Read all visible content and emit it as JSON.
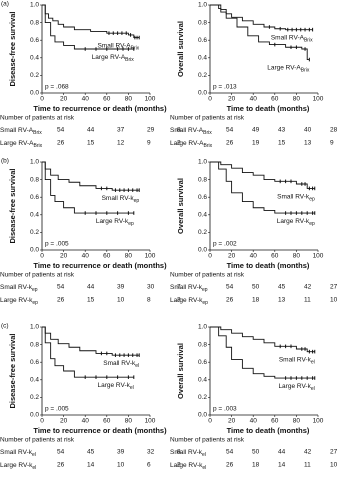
{
  "chart_data": [
    {
      "type": "step",
      "panel": "(a)",
      "ylabel": "Disease-free survival",
      "xlabel": "Time to recurrence or death (months)",
      "annotation": "p = .068",
      "xlim": [
        0,
        100
      ],
      "xticks": [
        0,
        20,
        40,
        60,
        80,
        100
      ],
      "ylim": [
        0,
        1
      ],
      "yticks": [
        {
          "value": 0,
          "label": "0.0"
        },
        0.2,
        0.4,
        0.6,
        0.8,
        {
          "value": 1,
          "label": "1.0"
        }
      ],
      "series": [
        {
          "name": "Small RV-A",
          "subscript": "Brix",
          "color": "#111111",
          "x": [
            0,
            3,
            6,
            10,
            15,
            20,
            30,
            45,
            60,
            80,
            85,
            90
          ],
          "values": [
            1,
            0.9,
            0.85,
            0.82,
            0.78,
            0.75,
            0.72,
            0.7,
            0.68,
            0.66,
            0.63,
            0.63
          ],
          "censored": [
            62,
            66,
            70,
            74,
            78,
            82,
            86,
            88,
            90
          ]
        },
        {
          "name": "Large RV-A",
          "subscript": "Brix",
          "color": "#111111",
          "x": [
            0,
            3,
            8,
            12,
            20,
            30,
            85
          ],
          "values": [
            1,
            0.8,
            0.65,
            0.58,
            0.54,
            0.5,
            0.5
          ],
          "censored": [
            40,
            50,
            60,
            70,
            75,
            80,
            85
          ]
        }
      ],
      "risk_table": {
        "title": "Number of patients at risk",
        "rows": [
          {
            "name": "Small RV-A",
            "subscript": "Brix",
            "counts": [
              54,
              44,
              37,
              29,
              8
            ]
          },
          {
            "name": "Large RV-A",
            "subscript": "Brix",
            "counts": [
              26,
              15,
              12,
              9,
              2
            ]
          }
        ]
      }
    },
    {
      "type": "step",
      "ylabel": "Overall survival",
      "xlabel": "Time to death (months)",
      "annotation": "p = .013",
      "xlim": [
        0,
        100
      ],
      "xticks": [
        0,
        20,
        40,
        60,
        80,
        100
      ],
      "ylim": [
        0,
        1
      ],
      "yticks": [
        {
          "value": 0,
          "label": "0.0"
        },
        0.2,
        0.4,
        0.6,
        0.8,
        {
          "value": 1,
          "label": "1.0"
        }
      ],
      "series": [
        {
          "name": "Small RV-A",
          "subscript": "Brix",
          "color": "#111111",
          "x": [
            0,
            10,
            15,
            20,
            30,
            40,
            50,
            60,
            70,
            95
          ],
          "values": [
            1,
            0.95,
            0.9,
            0.86,
            0.82,
            0.78,
            0.75,
            0.73,
            0.72,
            0.72
          ],
          "censored": [
            55,
            65,
            72,
            76,
            80,
            84,
            88,
            92,
            95
          ]
        },
        {
          "name": "Large RV-A",
          "subscript": "Brix",
          "color": "#111111",
          "x": [
            0,
            8,
            10,
            15,
            25,
            35,
            45,
            55,
            70,
            85,
            90,
            92
          ],
          "values": [
            1,
            0.96,
            0.92,
            0.85,
            0.75,
            0.65,
            0.58,
            0.55,
            0.52,
            0.5,
            0.38,
            0.38
          ],
          "censored": [
            60,
            75,
            80,
            88,
            92
          ]
        }
      ],
      "risk_table": {
        "title": "Number of patients at risk",
        "rows": [
          {
            "name": "Small RV-A",
            "subscript": "Brix",
            "counts": [
              54,
              49,
              43,
              40,
              28
            ]
          },
          {
            "name": "Large RV-A",
            "subscript": "Brix",
            "counts": [
              26,
              19,
              15,
              13,
              9
            ]
          }
        ]
      }
    },
    {
      "type": "step",
      "panel": "(b)",
      "ylabel": "Disease-free survival",
      "xlabel": "Time to recurrence or death (months)",
      "annotation": "p = .005",
      "xlim": [
        0,
        100
      ],
      "xticks": [
        0,
        20,
        40,
        60,
        80,
        100
      ],
      "ylim": [
        0,
        1
      ],
      "yticks": [
        {
          "value": 0,
          "label": "0.0"
        },
        0.2,
        0.4,
        0.6,
        0.8,
        {
          "value": 1,
          "label": "1.0"
        }
      ],
      "series": [
        {
          "name": "Small RV-k",
          "subscript": "ep",
          "color": "#111111",
          "x": [
            0,
            3,
            8,
            15,
            25,
            35,
            50,
            65,
            90
          ],
          "values": [
            1,
            0.92,
            0.85,
            0.8,
            0.77,
            0.73,
            0.7,
            0.68,
            0.68
          ],
          "censored": [
            55,
            60,
            68,
            72,
            76,
            80,
            84,
            88,
            90
          ]
        },
        {
          "name": "Large RV-k",
          "subscript": "ep",
          "color": "#111111",
          "x": [
            0,
            3,
            8,
            12,
            20,
            30,
            85
          ],
          "values": [
            1,
            0.8,
            0.62,
            0.55,
            0.48,
            0.42,
            0.42
          ],
          "censored": [
            40,
            50,
            60,
            70,
            80,
            85
          ]
        }
      ],
      "risk_table": {
        "title": "Number of patients at risk",
        "rows": [
          {
            "name": "Small RV-k",
            "subscript": "ep",
            "counts": [
              54,
              44,
              39,
              30,
              7
            ]
          },
          {
            "name": "Large RV-k",
            "subscript": "ep",
            "counts": [
              26,
              15,
              10,
              8,
              3
            ]
          }
        ]
      }
    },
    {
      "type": "step",
      "ylabel": "Overall survival",
      "xlabel": "Time to death (months)",
      "annotation": "p = .002",
      "xlim": [
        0,
        100
      ],
      "xticks": [
        0,
        20,
        40,
        60,
        80,
        100
      ],
      "ylim": [
        0,
        1
      ],
      "yticks": [
        {
          "value": 0,
          "label": "0.0"
        },
        0.2,
        0.4,
        0.6,
        0.8,
        {
          "value": 1,
          "label": "1.0"
        }
      ],
      "series": [
        {
          "name": "Small RV-k",
          "subscript": "ep",
          "color": "#111111",
          "x": [
            0,
            10,
            20,
            30,
            40,
            50,
            60,
            80,
            90,
            97
          ],
          "values": [
            1,
            0.97,
            0.93,
            0.88,
            0.85,
            0.8,
            0.78,
            0.75,
            0.7,
            0.7
          ],
          "censored": [
            65,
            70,
            75,
            85,
            88,
            92,
            95,
            97
          ]
        },
        {
          "name": "Large RV-k",
          "subscript": "ep",
          "color": "#111111",
          "x": [
            0,
            8,
            15,
            20,
            30,
            40,
            50,
            60,
            97
          ],
          "values": [
            1,
            0.92,
            0.78,
            0.65,
            0.55,
            0.48,
            0.45,
            0.42,
            0.42
          ],
          "censored": [
            70,
            75,
            80,
            85,
            90,
            95,
            97
          ]
        }
      ],
      "risk_table": {
        "title": "Number of patients at risk",
        "rows": [
          {
            "name": "Small RV-k",
            "subscript": "ep",
            "counts": [
              54,
              50,
              45,
              42,
              27
            ]
          },
          {
            "name": "Large RV-k",
            "subscript": "ep",
            "counts": [
              26,
              18,
              13,
              11,
              10
            ]
          }
        ]
      }
    },
    {
      "type": "step",
      "panel": "(c)",
      "ylabel": "Disease-free survival",
      "xlabel": "Time to recurrence or death (months)",
      "annotation": "p = .005",
      "xlim": [
        0,
        100
      ],
      "xticks": [
        0,
        20,
        40,
        60,
        80,
        100
      ],
      "ylim": [
        0,
        1
      ],
      "yticks": [
        {
          "value": 0,
          "label": "0.0"
        },
        0.2,
        0.4,
        0.6,
        0.8,
        {
          "value": 1,
          "label": "1.0"
        }
      ],
      "series": [
        {
          "name": "Small RV-k",
          "subscript": "el",
          "color": "#111111",
          "x": [
            0,
            3,
            8,
            15,
            25,
            35,
            50,
            65,
            90
          ],
          "values": [
            1,
            0.93,
            0.86,
            0.81,
            0.77,
            0.73,
            0.7,
            0.68,
            0.68
          ],
          "censored": [
            55,
            60,
            68,
            72,
            76,
            80,
            84,
            88,
            90
          ]
        },
        {
          "name": "Large RV-k",
          "subscript": "el",
          "color": "#111111",
          "x": [
            0,
            3,
            8,
            12,
            20,
            30,
            85
          ],
          "values": [
            1,
            0.82,
            0.64,
            0.56,
            0.5,
            0.43,
            0.43
          ],
          "censored": [
            40,
            50,
            60,
            70,
            80,
            85
          ]
        }
      ],
      "risk_table": {
        "title": "Number of patients at risk",
        "rows": [
          {
            "name": "Small RV-k",
            "subscript": "el",
            "counts": [
              54,
              45,
              39,
              32,
              8
            ]
          },
          {
            "name": "Large RV-k",
            "subscript": "el",
            "counts": [
              26,
              14,
              10,
              6,
              2
            ]
          }
        ]
      }
    },
    {
      "type": "step",
      "ylabel": "Overall survival",
      "xlabel": "Time to death (months)",
      "annotation": "p = .003",
      "xlim": [
        0,
        100
      ],
      "xticks": [
        0,
        20,
        40,
        60,
        80,
        100
      ],
      "ylim": [
        0,
        1
      ],
      "yticks": [
        {
          "value": 0,
          "label": "0.0"
        },
        0.2,
        0.4,
        0.6,
        0.8,
        {
          "value": 1,
          "label": "1.0"
        }
      ],
      "series": [
        {
          "name": "Small RV-k",
          "subscript": "el",
          "color": "#111111",
          "x": [
            0,
            10,
            20,
            30,
            40,
            50,
            60,
            80,
            90,
            97
          ],
          "values": [
            1,
            0.97,
            0.93,
            0.89,
            0.86,
            0.82,
            0.78,
            0.75,
            0.72,
            0.72
          ],
          "censored": [
            65,
            70,
            75,
            85,
            88,
            92,
            95,
            97
          ]
        },
        {
          "name": "Large RV-k",
          "subscript": "el",
          "color": "#111111",
          "x": [
            0,
            8,
            15,
            20,
            30,
            40,
            50,
            60,
            97
          ],
          "values": [
            1,
            0.9,
            0.77,
            0.63,
            0.53,
            0.47,
            0.44,
            0.42,
            0.42
          ],
          "censored": [
            70,
            75,
            80,
            85,
            90,
            95,
            97
          ]
        }
      ],
      "risk_table": {
        "title": "Number of patients at risk",
        "rows": [
          {
            "name": "Small RV-k",
            "subscript": "el",
            "counts": [
              54,
              50,
              44,
              42,
              27
            ]
          },
          {
            "name": "Large RV-k",
            "subscript": "el",
            "counts": [
              26,
              18,
              14,
              11,
              10
            ]
          }
        ]
      }
    }
  ]
}
